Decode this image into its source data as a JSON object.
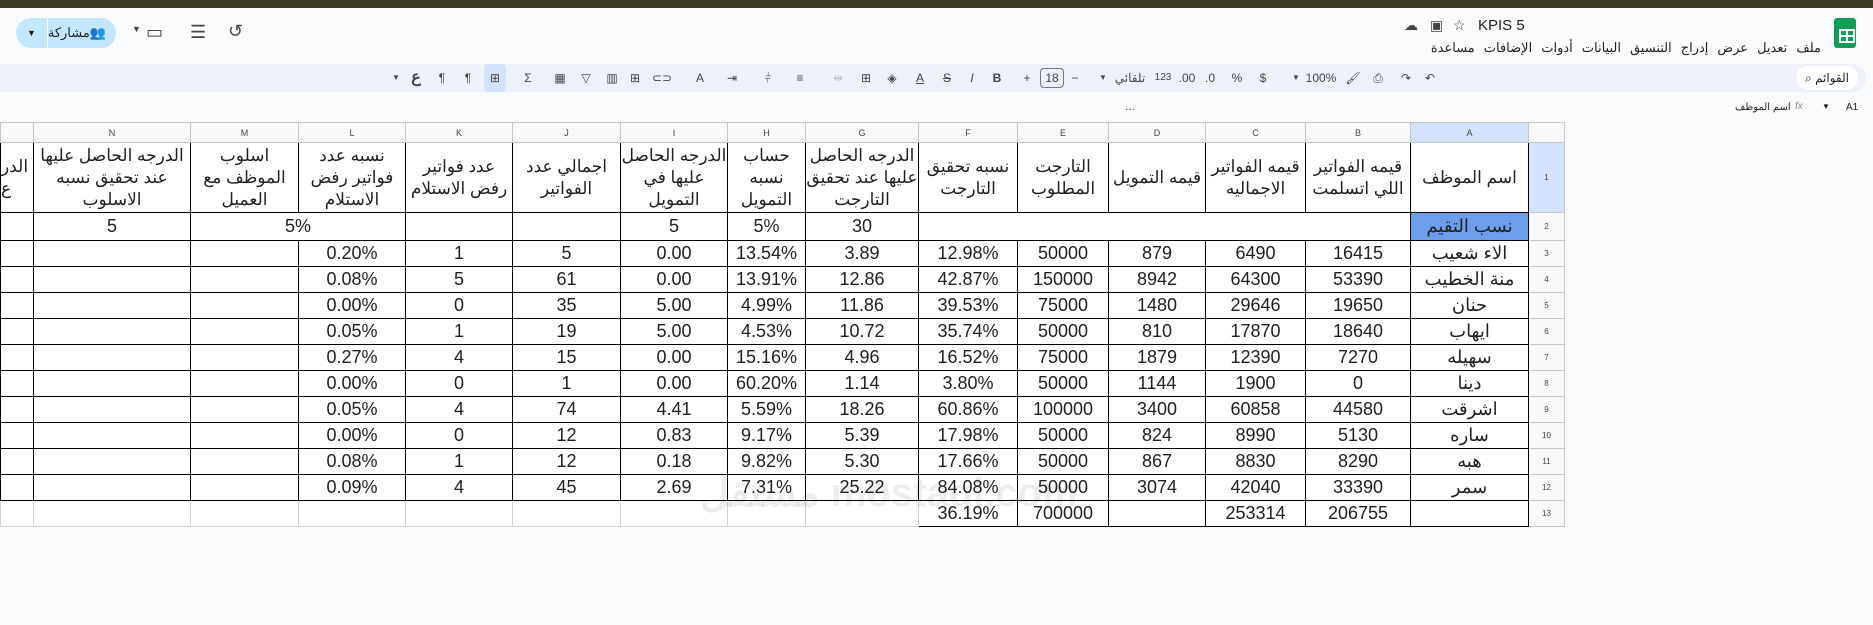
{
  "app": {
    "title": "KPIS 5",
    "menu": [
      "ملف",
      "تعديل",
      "عرض",
      "إدراج",
      "التنسيق",
      "البيانات",
      "أدوات",
      "الإضافات",
      "مساعدة"
    ],
    "share_label": "مشاركة"
  },
  "toolbar": {
    "search_label": "القوائم",
    "zoom": "100%",
    "currency": "$",
    "percent": "%",
    "dec_less": ".0",
    "dec_more": ".00",
    "format_123": "123",
    "font": "تلقائي ...",
    "font_size": "18",
    "bold": "B",
    "italic": "I",
    "strike": "S",
    "text_color": "A",
    "sigma": "Σ",
    "input_tool": "ع"
  },
  "formula_bar": {
    "cell_ref": "A1",
    "fx": "fx",
    "content": "اسم الموظف"
  },
  "sheet": {
    "columns": [
      "A",
      "B",
      "C",
      "D",
      "E",
      "F",
      "G",
      "H",
      "I",
      "J",
      "K",
      "L",
      "M",
      "N"
    ],
    "headers": [
      "اسم الموظف",
      "قيمه الفواتير اللي اتسلمت",
      "قيمه الفواتير الاجماليه",
      "قيمه التمويل",
      "التارجت المطلوب",
      "نسبه تحقيق التارجت",
      "الدرجه الحاصل عليها عند تحقيق التارجت",
      "حساب نسبه التمويل",
      "الدرجه الحاصل عليها في التمويل",
      "اجمالي عدد الفواتير",
      "عدد فواتير رفض الاستلام",
      "نسبه عدد فواتير رفض الاستلام",
      "اسلوب الموظف مع العميل",
      "الدرجه الحاصل عليها عند تحقيق نسبه الاسلوب"
    ],
    "partial_header": [
      "الدر",
      "ع"
    ],
    "weights_row": {
      "label": "نسب التقيم",
      "G": "30",
      "H": "5%",
      "I": "5",
      "LM": "5%",
      "N": "5"
    },
    "rows": [
      [
        "الاء شعيب",
        "16415",
        "6490",
        "879",
        "50000",
        "12.98%",
        "3.89",
        "13.54%",
        "0.00",
        "5",
        "1",
        "0.20%"
      ],
      [
        "منة الخطيب",
        "53390",
        "64300",
        "8942",
        "150000",
        "42.87%",
        "12.86",
        "13.91%",
        "0.00",
        "61",
        "5",
        "0.08%"
      ],
      [
        "حنان",
        "19650",
        "29646",
        "1480",
        "75000",
        "39.53%",
        "11.86",
        "4.99%",
        "5.00",
        "35",
        "0",
        "0.00%"
      ],
      [
        "ايهاب",
        "18640",
        "17870",
        "810",
        "50000",
        "35.74%",
        "10.72",
        "4.53%",
        "5.00",
        "19",
        "1",
        "0.05%"
      ],
      [
        "سهيله",
        "7270",
        "12390",
        "1879",
        "75000",
        "16.52%",
        "4.96",
        "15.16%",
        "0.00",
        "15",
        "4",
        "0.27%"
      ],
      [
        "دينا",
        "0",
        "1900",
        "1144",
        "50000",
        "3.80%",
        "1.14",
        "60.20%",
        "0.00",
        "1",
        "0",
        "0.00%"
      ],
      [
        "اشرقت",
        "44580",
        "60858",
        "3400",
        "100000",
        "60.86%",
        "18.26",
        "5.59%",
        "4.41",
        "74",
        "4",
        "0.05%"
      ],
      [
        "ساره",
        "5130",
        "8990",
        "824",
        "50000",
        "17.98%",
        "5.39",
        "9.17%",
        "0.83",
        "12",
        "0",
        "0.00%"
      ],
      [
        "هبه",
        "8290",
        "8830",
        "867",
        "50000",
        "17.66%",
        "5.30",
        "9.82%",
        "0.18",
        "12",
        "1",
        "0.08%"
      ],
      [
        "سمر",
        "33390",
        "42040",
        "3074",
        "50000",
        "84.08%",
        "25.22",
        "7.31%",
        "2.69",
        "45",
        "4",
        "0.09%"
      ]
    ],
    "totals": [
      "",
      "206755",
      "253314",
      "",
      "700000",
      "36.19%"
    ]
  },
  "watermark": "مستقل mostaql.com",
  "colors": {
    "highlight": "#6d9eeb",
    "selection": "#d3e3fd",
    "share": "#c2e7ff",
    "logo": "#0f9d58"
  }
}
